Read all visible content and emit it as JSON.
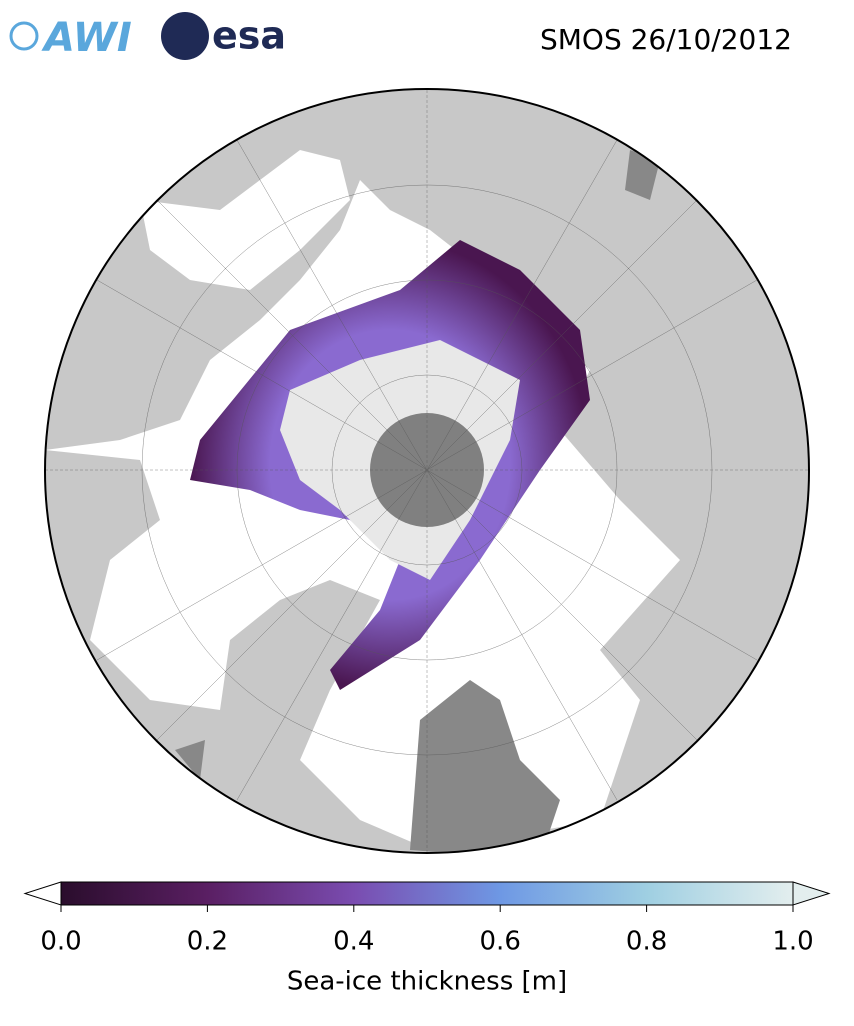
{
  "header": {
    "logos": [
      "AWI",
      "esa"
    ],
    "title": "SMOS 26/10/2012"
  },
  "colorbar": {
    "label": "Sea-ice thickness [m]",
    "lim": [
      0,
      1
    ],
    "ticks": [
      {
        "value": 0,
        "label": "0.0"
      },
      {
        "value": 0.2,
        "label": "0.2"
      },
      {
        "value": 0.4,
        "label": "0.4"
      },
      {
        "value": 0.6,
        "label": "0.6"
      },
      {
        "value": 0.8,
        "label": "0.8"
      },
      {
        "value": 1,
        "label": "1.0"
      }
    ]
  }
}
